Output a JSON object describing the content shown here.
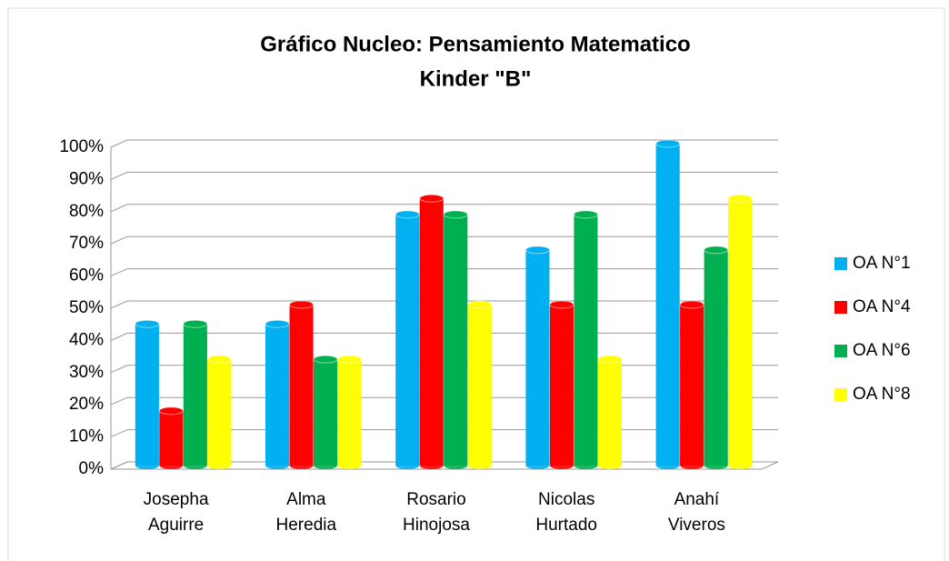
{
  "chart_data": {
    "type": "bar",
    "title": "Gráfico Nucleo: Pensamiento Matematico",
    "subtitle": "Kinder  \"B\"",
    "categories": [
      "Josepha Aguirre",
      "Alma Heredia",
      "Rosario Hinojosa",
      "Nicolas Hurtado",
      "Anahí Viveros"
    ],
    "series": [
      {
        "name": "OA N°1",
        "color": "#00b0f0",
        "values": [
          44,
          44,
          78,
          67,
          100
        ]
      },
      {
        "name": "OA N°4",
        "color": "#ff0000",
        "values": [
          17,
          50,
          83,
          50,
          50
        ]
      },
      {
        "name": "OA N°6",
        "color": "#00b050",
        "values": [
          44,
          33,
          78,
          78,
          67
        ]
      },
      {
        "name": "OA N°8",
        "color": "#ffff00",
        "values": [
          33,
          33,
          50,
          33,
          83
        ]
      }
    ],
    "ylim": [
      0,
      100
    ],
    "yticks": [
      {
        "value": 0,
        "label": "0%"
      },
      {
        "value": 10,
        "label": "10%"
      },
      {
        "value": 20,
        "label": "20%"
      },
      {
        "value": 30,
        "label": "30%"
      },
      {
        "value": 40,
        "label": "40%"
      },
      {
        "value": 50,
        "label": "50%"
      },
      {
        "value": 60,
        "label": "60%"
      },
      {
        "value": 70,
        "label": "70%"
      },
      {
        "value": 80,
        "label": "80%"
      },
      {
        "value": 90,
        "label": "90%"
      },
      {
        "value": 100,
        "label": "100%"
      }
    ],
    "grid": true,
    "legend": "right"
  }
}
